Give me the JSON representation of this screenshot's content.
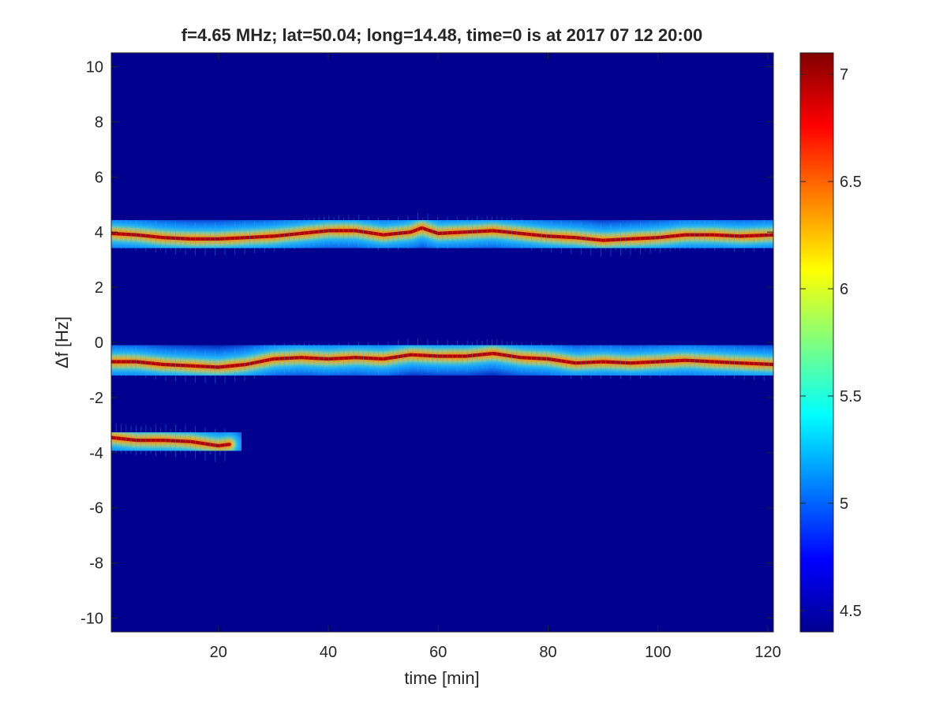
{
  "chart_data": {
    "type": "heatmap",
    "title": "f=4.65 MHz;  lat=50.04; long=14.48, time=0 is at 2017 07 12 20:00",
    "xlabel": "time [min]",
    "ylabel": "Δf [Hz]",
    "xlim": [
      0.5,
      121
    ],
    "ylim": [
      -10.5,
      10.5
    ],
    "x_ticks": [
      "20",
      "40",
      "60",
      "80",
      "100",
      "120"
    ],
    "x_tick_values": [
      20,
      40,
      60,
      80,
      100,
      120
    ],
    "y_ticks": [
      "10",
      "8",
      "6",
      "4",
      "2",
      "0",
      "-2",
      "-4",
      "-6",
      "-8",
      "-10"
    ],
    "y_tick_values": [
      10,
      8,
      6,
      4,
      2,
      0,
      -2,
      -4,
      -6,
      -8,
      -10
    ],
    "colorbar": {
      "colormap": "jet",
      "range": [
        4.4,
        7.1
      ],
      "ticks": [
        "7",
        "6.5",
        "6",
        "5.5",
        "5",
        "4.5"
      ],
      "tick_values": [
        7,
        6.5,
        6,
        5.5,
        5,
        4.5
      ]
    },
    "background_color": "#00008f",
    "grid": false,
    "series": [
      {
        "x": [
          0.5,
          5,
          10,
          15,
          20,
          25,
          30,
          35,
          40,
          45,
          50,
          55,
          57,
          60,
          65,
          70,
          75,
          80,
          85,
          90,
          95,
          100,
          105,
          110,
          115,
          121
        ],
        "y": [
          3.95,
          3.9,
          3.8,
          3.75,
          3.75,
          3.8,
          3.85,
          3.95,
          4.05,
          4.05,
          3.9,
          4.0,
          4.15,
          3.95,
          4.0,
          4.05,
          3.95,
          3.85,
          3.8,
          3.7,
          3.75,
          3.8,
          3.9,
          3.9,
          3.85,
          3.9
        ]
      },
      {
        "x": [
          0.5,
          5,
          10,
          15,
          20,
          25,
          30,
          35,
          40,
          45,
          50,
          55,
          60,
          65,
          70,
          75,
          80,
          85,
          90,
          95,
          100,
          105,
          110,
          115,
          121
        ],
        "y": [
          -0.7,
          -0.7,
          -0.8,
          -0.85,
          -0.9,
          -0.8,
          -0.6,
          -0.55,
          -0.6,
          -0.55,
          -0.6,
          -0.45,
          -0.5,
          -0.5,
          -0.4,
          -0.55,
          -0.6,
          -0.75,
          -0.7,
          -0.75,
          -0.7,
          -0.65,
          -0.7,
          -0.75,
          -0.8
        ]
      },
      {
        "x": [
          0.5,
          5,
          10,
          15,
          20,
          22
        ],
        "y": [
          -3.45,
          -3.55,
          -3.55,
          -3.6,
          -3.75,
          -3.7
        ]
      }
    ]
  }
}
